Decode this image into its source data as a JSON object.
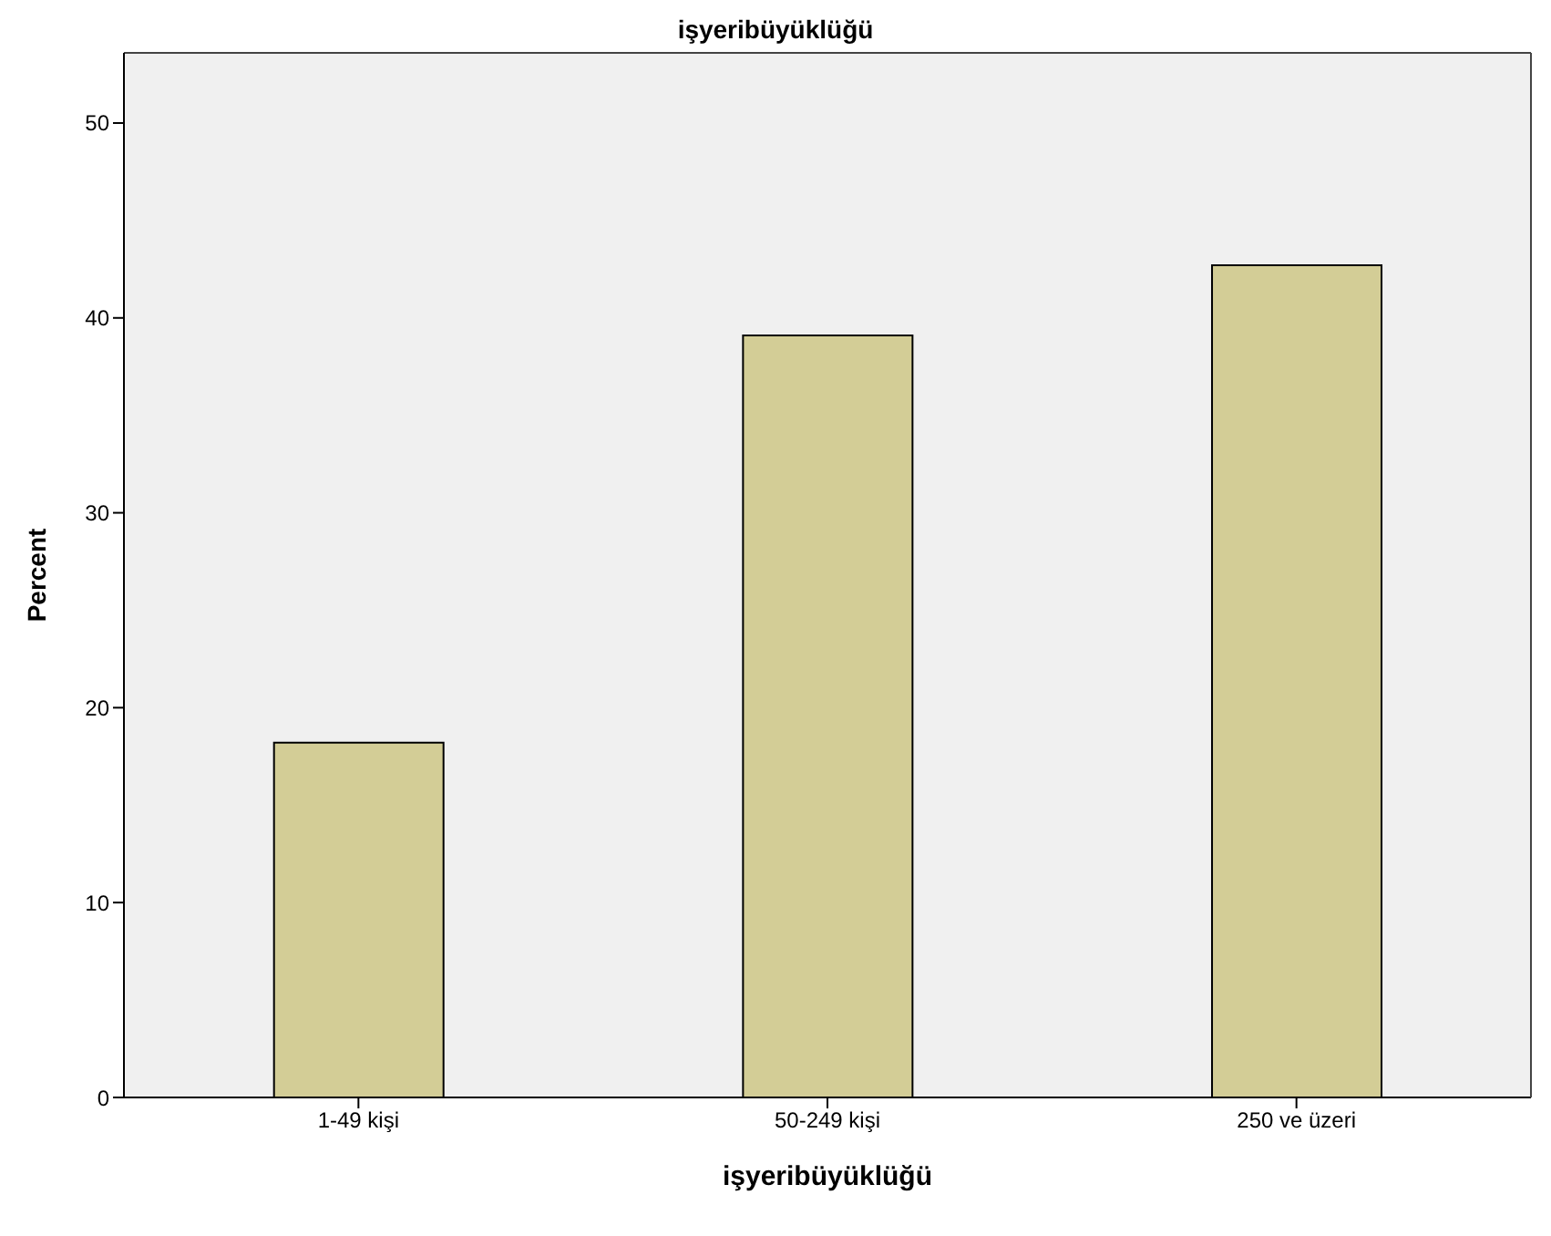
{
  "chart_data": {
    "type": "bar",
    "title": "işyeribüyüklüğü",
    "xlabel": "işyeribüyüklüğü",
    "ylabel": "Percent",
    "categories": [
      "1-49 kişi",
      "50-249 kişi",
      "250 ve üzeri"
    ],
    "values": [
      18.2,
      39.1,
      42.7
    ],
    "color": "#d3cd96",
    "ylim": [
      0,
      53.6
    ],
    "yticks": [
      0,
      10,
      20,
      30,
      40,
      50
    ],
    "grid": false,
    "legend": false
  }
}
